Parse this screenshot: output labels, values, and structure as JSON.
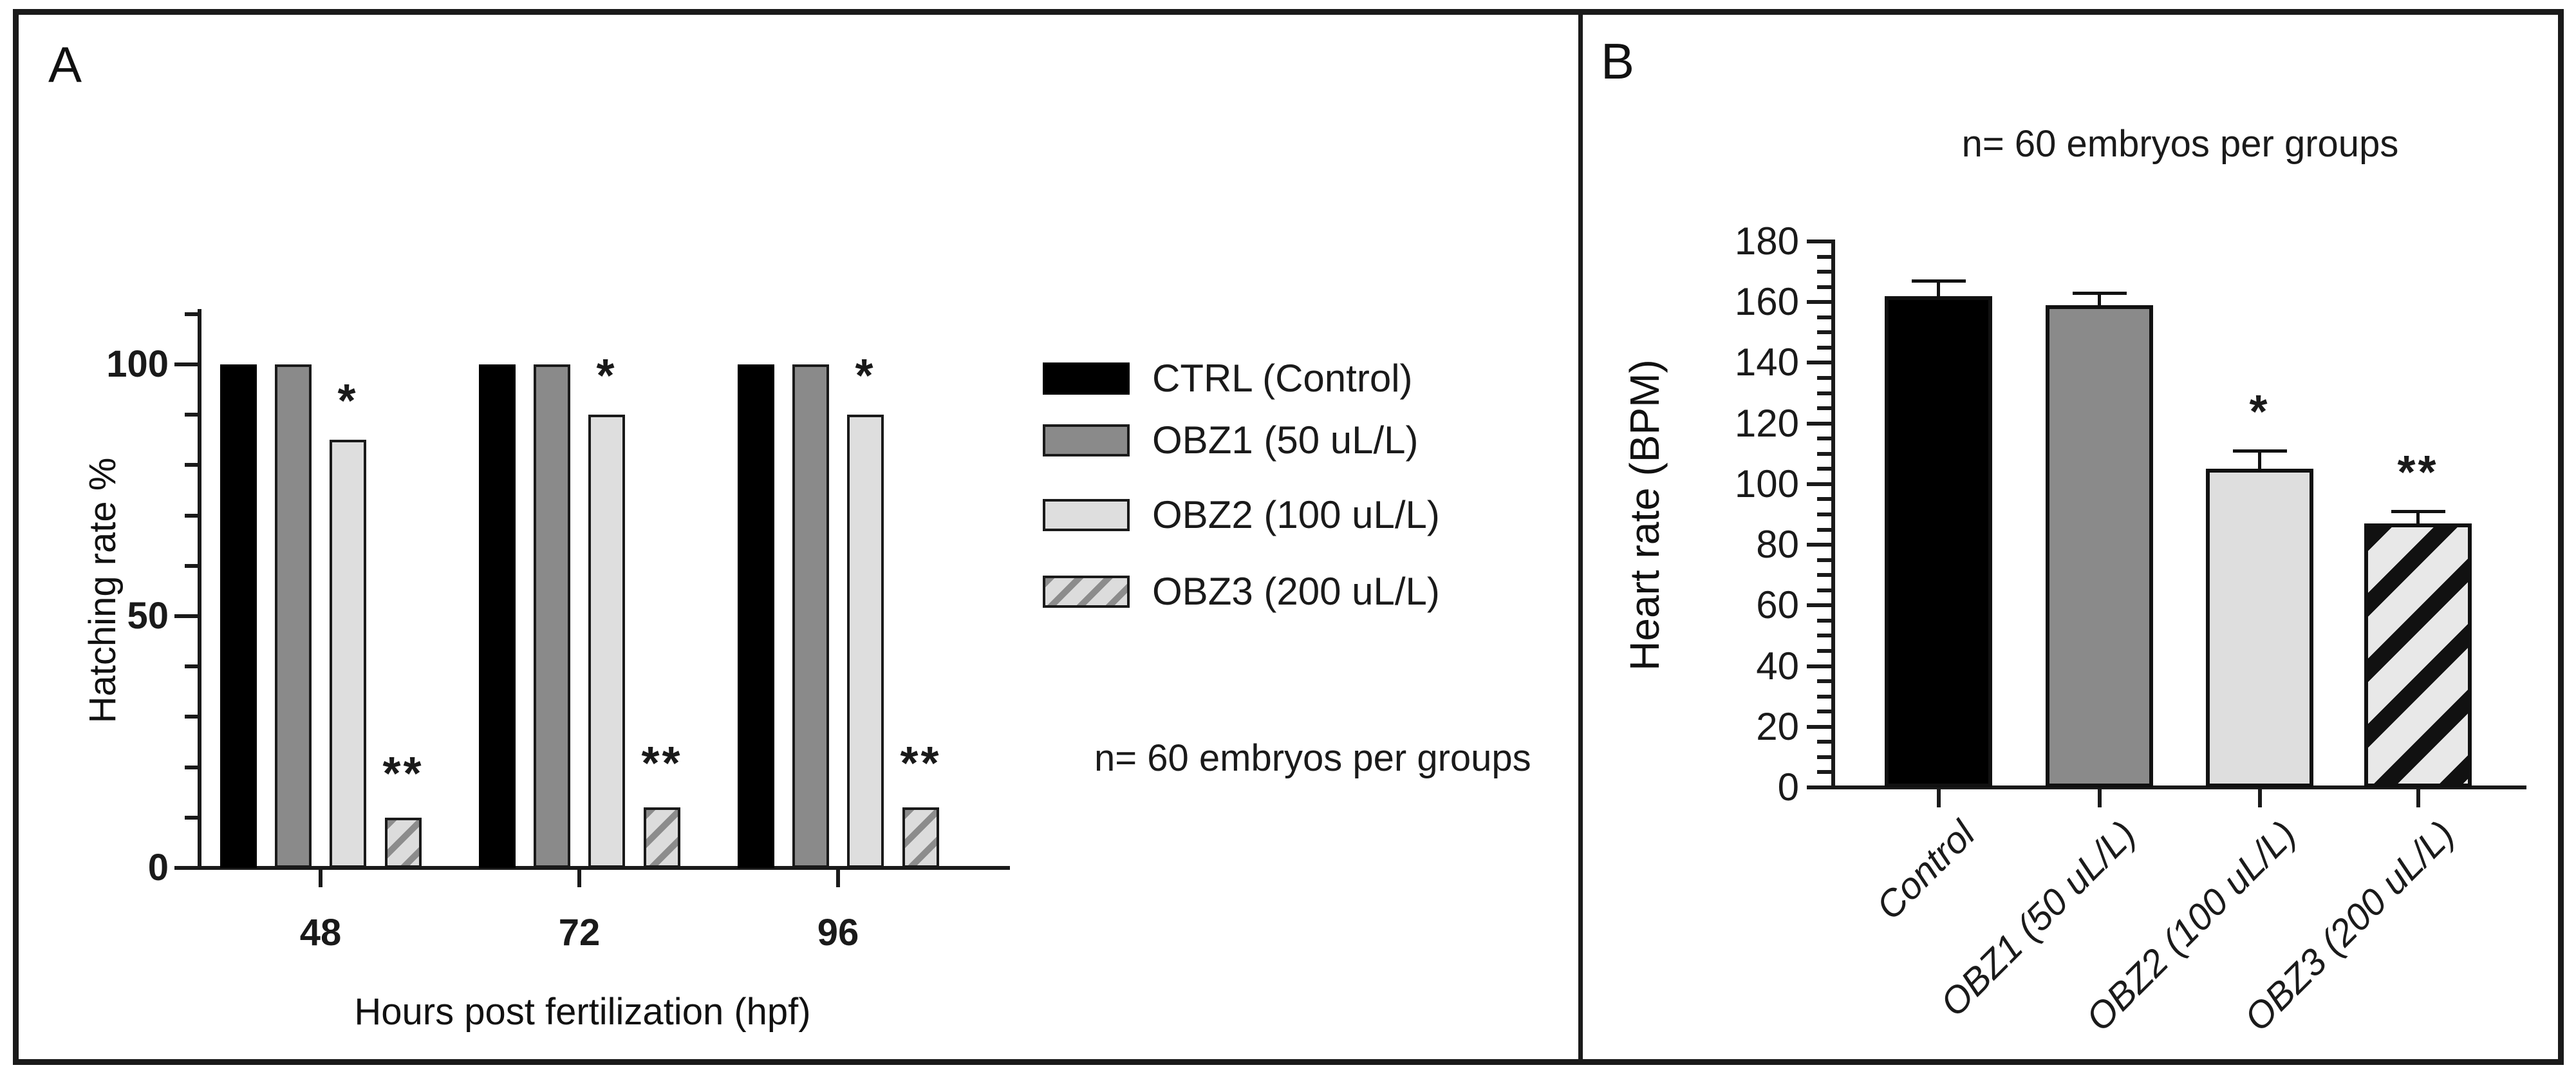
{
  "panels": {
    "a": {
      "label": "A",
      "ylabel": "Hatching rate %",
      "xlabel": "Hours post fertilization (hpf)",
      "annotation": "n= 60 embryos per groups"
    },
    "b": {
      "label": "B",
      "ylabel": "Heart rate (BPM)",
      "annotation": "n= 60 embryos per groups"
    }
  },
  "colors": {
    "ctrl": "#000000",
    "obz1": "#8a8a8a",
    "obz2": "#dedede",
    "obz3_background": "#e8e8e8",
    "obz3_stripe": "#111111",
    "axis": "#1a1a1a"
  },
  "chart_data": [
    {
      "panel": "A",
      "type": "bar",
      "title": "",
      "xlabel": "Hours post fertilization (hpf)",
      "ylabel": "Hatching rate %",
      "categories": [
        "48",
        "72",
        "96"
      ],
      "series": [
        {
          "name": "CTRL (Control)",
          "fill": "black",
          "values": [
            100,
            100,
            100
          ],
          "significance": [
            "",
            "",
            ""
          ]
        },
        {
          "name": "OBZ1 (50 uL/L)",
          "fill": "gray",
          "values": [
            100,
            100,
            100
          ],
          "significance": [
            "",
            "",
            ""
          ]
        },
        {
          "name": "OBZ2 (100 uL/L)",
          "fill": "light",
          "values": [
            85,
            90,
            90
          ],
          "significance": [
            "*",
            "*",
            "*"
          ]
        },
        {
          "name": "OBZ3 (200 uL/L)",
          "fill": "hatch-fine",
          "values": [
            10,
            12,
            12
          ],
          "significance": [
            "**",
            "**",
            "**"
          ]
        }
      ],
      "ylim": [
        0,
        110
      ],
      "yticks_major": [
        0,
        50,
        100
      ],
      "ytick_minor_step": 10,
      "grid": false,
      "legend_position": "right",
      "annotation": "n= 60 embryos per groups"
    },
    {
      "panel": "B",
      "type": "bar",
      "title": "",
      "xlabel": "",
      "ylabel": "Heart rate (BPM)",
      "categories": [
        "Control",
        "OBZ1 (50 uL/L)",
        "OBZ2 (100 uL/L)",
        "OBZ3 (200 uL/L)"
      ],
      "values": [
        162,
        159,
        105,
        87
      ],
      "errors_plus": [
        5,
        4,
        6,
        4
      ],
      "significance": [
        "",
        "",
        "*",
        "**"
      ],
      "fills": [
        "black",
        "gray",
        "light",
        "hatch-bold"
      ],
      "ylim": [
        0,
        180
      ],
      "ytick_major_step": 20,
      "ytick_minor_step": 5,
      "grid": false,
      "annotation": "n= 60 embryos per groups"
    }
  ]
}
